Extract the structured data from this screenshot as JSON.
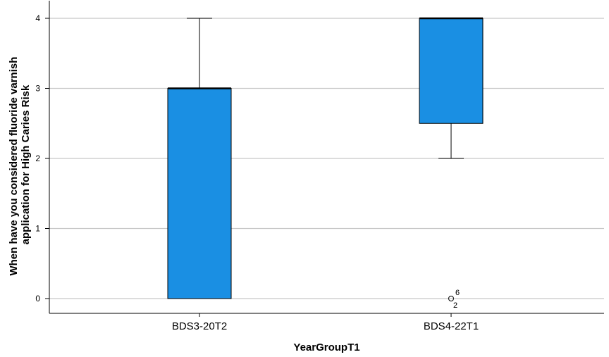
{
  "chart_data": {
    "type": "boxplot",
    "title": "",
    "xlabel": "YearGroupT1",
    "ylabel_lines": [
      "When have you considered fluoride varnish",
      "application for High Caries Risk"
    ],
    "ylim": [
      0,
      4
    ],
    "yticks": [
      0,
      1,
      2,
      3,
      4
    ],
    "grid": true,
    "box_color": "#1a8fe3",
    "categories": [
      "BDS3-20T2",
      "BDS4-22T1"
    ],
    "boxes": [
      {
        "category": "BDS3-20T2",
        "whisker_low": 0,
        "q1": 0,
        "median": 3,
        "q3": 3,
        "whisker_high": 4,
        "outliers": []
      },
      {
        "category": "BDS4-22T1",
        "whisker_low": 2,
        "q1": 2.5,
        "median": 4,
        "q3": 4,
        "whisker_high": 4,
        "outliers": [
          {
            "value": 0,
            "label_top": "6",
            "label_bottom": "2"
          }
        ]
      }
    ]
  }
}
